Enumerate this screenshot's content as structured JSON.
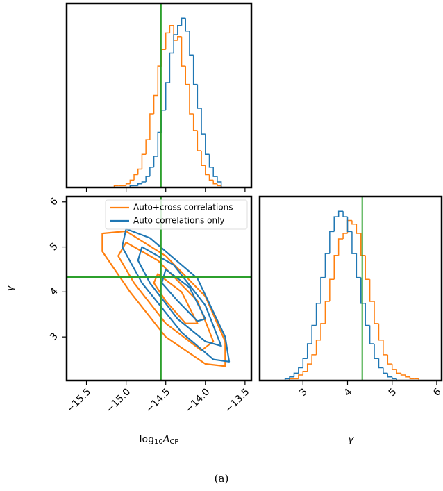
{
  "chart_data": [
    {
      "type": "histogram",
      "bins": [
        -15.3,
        -15.25,
        -15.2,
        -15.15,
        -15.1,
        -15.05,
        -15.0,
        -14.95,
        -14.9,
        -14.85,
        -14.8,
        -14.75,
        -14.7,
        -14.65,
        -14.6,
        -14.55,
        -14.5,
        -14.45,
        -14.4,
        -14.35,
        -14.3,
        -14.25,
        -14.2,
        -14.15,
        -14.1,
        -14.05,
        -14.0,
        -13.95,
        -13.9,
        -13.85,
        -13.8
      ],
      "series": [
        {
          "color": "#ff7f0e",
          "values": [
            0,
            0,
            0,
            1,
            1,
            1,
            2,
            4,
            7,
            10,
            18,
            26,
            40,
            50,
            66,
            75,
            84,
            88,
            80,
            82,
            66,
            56,
            40,
            31,
            20,
            12,
            7,
            4,
            2,
            1
          ]
        },
        {
          "color": "#1f77b4",
          "values": [
            0,
            0,
            0,
            0,
            0,
            0,
            0,
            1,
            1,
            2,
            3,
            6,
            11,
            17,
            30,
            42,
            57,
            73,
            83,
            88,
            92,
            85,
            72,
            56,
            43,
            29,
            18,
            11,
            6,
            3
          ]
        }
      ],
      "xlim": [
        -15.75,
        -13.42
      ],
      "ylim": [
        0,
        100
      ],
      "xticks": [
        -15.5,
        -15.0,
        -14.5,
        -14.0,
        -13.5
      ],
      "truth_x": -14.56,
      "truth_color": "#2ca02c"
    },
    {
      "type": "contour",
      "xlabel": [
        "log",
        "10",
        "A",
        "CP"
      ],
      "ylabel": "γ",
      "xlim": [
        -15.75,
        -13.42
      ],
      "ylim": [
        2.03,
        6.12
      ],
      "xticks": [
        {
          "value": -15.5,
          "label": "−15.5"
        },
        {
          "value": -15.0,
          "label": "−15.0"
        },
        {
          "value": -14.5,
          "label": "−14.5"
        },
        {
          "value": -14.0,
          "label": "−14.0"
        },
        {
          "value": -13.5,
          "label": "−13.5"
        }
      ],
      "yticks": [
        3,
        4,
        5,
        6
      ],
      "truth_x": -14.56,
      "truth_y": 4.33,
      "truth_color": "#2ca02c",
      "legend": "upper right",
      "series": [
        {
          "name": "Auto+cross correlations",
          "color": "#ff7f0e",
          "contours": [
            {
              "x": [
                -15.3,
                -15.0,
                -14.5,
                -14.0,
                -13.75,
                -13.75,
                -14.0,
                -14.5,
                -14.95,
                -15.3
              ],
              "y": [
                5.3,
                5.35,
                4.8,
                3.9,
                2.9,
                2.35,
                2.4,
                3.0,
                4.0,
                4.9
              ]
            },
            {
              "x": [
                -15.0,
                -14.6,
                -14.1,
                -13.9,
                -14.05,
                -14.5,
                -14.9,
                -15.1
              ],
              "y": [
                5.1,
                4.7,
                3.8,
                2.9,
                2.7,
                3.3,
                4.2,
                4.8
              ]
            },
            {
              "x": [
                -14.6,
                -14.3,
                -14.1,
                -14.25,
                -14.5,
                -14.65
              ],
              "y": [
                4.4,
                4.0,
                3.3,
                3.3,
                3.8,
                4.2
              ]
            }
          ]
        },
        {
          "name": "Auto correlations only",
          "color": "#1f77b4",
          "contours": [
            {
              "x": [
                -15.0,
                -14.7,
                -14.1,
                -13.75,
                -13.7,
                -13.9,
                -14.3,
                -14.8,
                -15.05
              ],
              "y": [
                5.4,
                5.2,
                4.3,
                3.0,
                2.45,
                2.5,
                3.1,
                4.2,
                5.0
              ]
            },
            {
              "x": [
                -14.8,
                -14.4,
                -14.0,
                -13.8,
                -14.0,
                -14.35,
                -14.7,
                -14.85
              ],
              "y": [
                5.0,
                4.6,
                3.7,
                2.8,
                2.9,
                3.4,
                4.2,
                4.7
              ]
            },
            {
              "x": [
                -14.5,
                -14.2,
                -14.0,
                -14.1,
                -14.35,
                -14.55
              ],
              "y": [
                4.5,
                4.1,
                3.4,
                3.35,
                3.8,
                4.2
              ]
            }
          ]
        }
      ]
    },
    {
      "type": "histogram",
      "xlabel": "γ",
      "bins": [
        2.4,
        2.5,
        2.6,
        2.7,
        2.8,
        2.9,
        3.0,
        3.1,
        3.2,
        3.3,
        3.4,
        3.5,
        3.6,
        3.7,
        3.8,
        3.9,
        4.0,
        4.1,
        4.2,
        4.3,
        4.4,
        4.5,
        4.6,
        4.7,
        4.8,
        4.9,
        5.0,
        5.1,
        5.2,
        5.3,
        5.4,
        5.5,
        5.6,
        5.7
      ],
      "series": [
        {
          "color": "#ff7f0e",
          "values": [
            0,
            0,
            0,
            1,
            1,
            3,
            5,
            9,
            14,
            22,
            31,
            43,
            55,
            68,
            77,
            80,
            87,
            85,
            80,
            68,
            55,
            43,
            31,
            22,
            14,
            9,
            6,
            4,
            3,
            2,
            1,
            1,
            0
          ]
        },
        {
          "color": "#1f77b4",
          "values": [
            0,
            0,
            1,
            2,
            4,
            7,
            12,
            20,
            30,
            42,
            56,
            69,
            81,
            89,
            92,
            89,
            81,
            69,
            56,
            42,
            30,
            20,
            12,
            7,
            4,
            2,
            1,
            0,
            0,
            0,
            0,
            0,
            0
          ]
        }
      ],
      "xlim": [
        2.03,
        6.11
      ],
      "ylim": [
        0,
        100
      ],
      "xticks": [
        3,
        4,
        5,
        6
      ],
      "xticklabels": true,
      "truth_x": 4.33,
      "truth_color": "#2ca02c"
    }
  ],
  "caption": "(a)"
}
